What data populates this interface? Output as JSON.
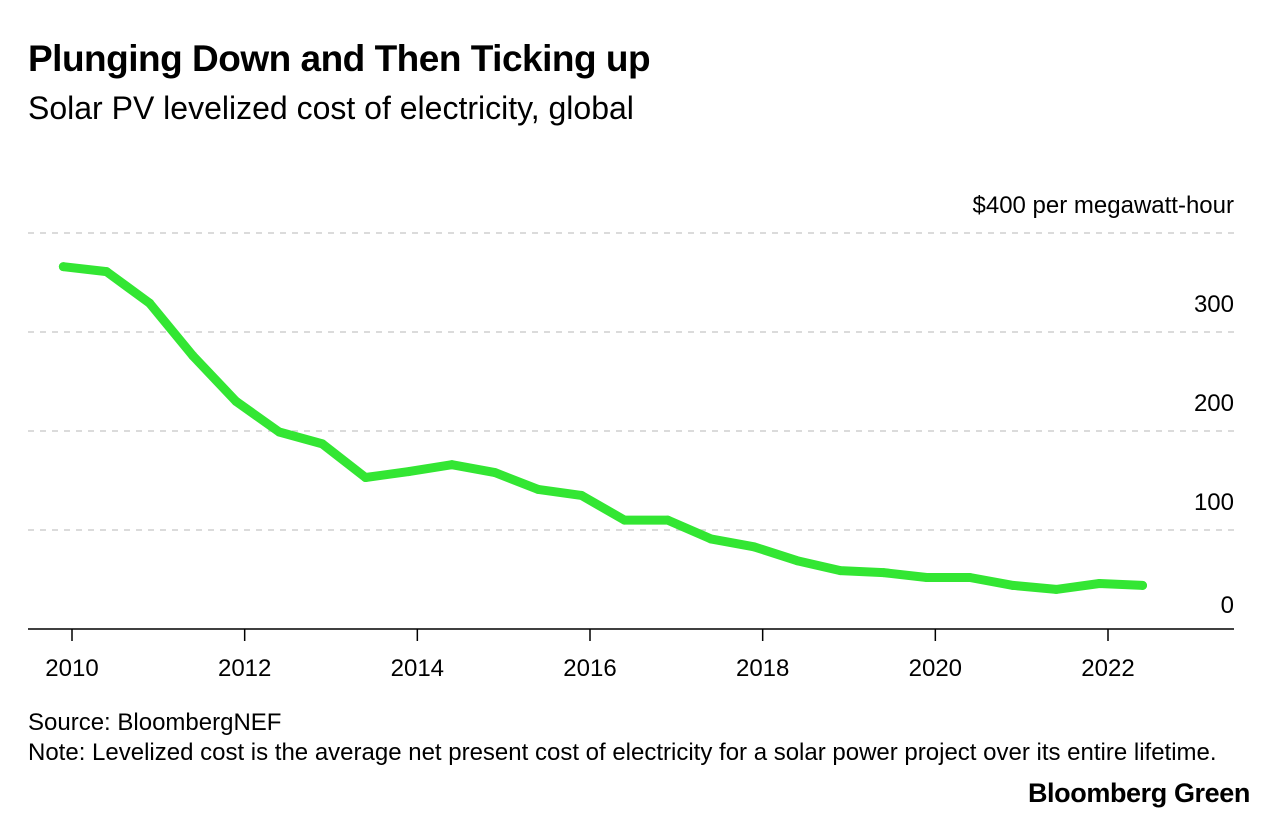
{
  "title": "Plunging Down and Then Ticking up",
  "subtitle": "Solar PV levelized cost of electricity, global",
  "source": "Source: BloombergNEF",
  "note": "Note: Levelized cost is the average net present cost of electricity for a solar power project over its entire lifetime.",
  "brand": "Bloomberg Green",
  "chart_data": {
    "type": "line",
    "title": "Plunging Down and Then Ticking up",
    "subtitle": "Solar PV levelized cost of electricity, global",
    "ylabel": "$400 per megawatt-hour",
    "xlabel": "",
    "xlim": [
      2009.5,
      2023.5
    ],
    "ylim": [
      0,
      400
    ],
    "y_ticks": [
      {
        "value": 400,
        "label": "$400 per megawatt-hour"
      },
      {
        "value": 300,
        "label": "300"
      },
      {
        "value": 200,
        "label": "200"
      },
      {
        "value": 100,
        "label": "100"
      },
      {
        "value": 0,
        "label": "0"
      }
    ],
    "x_ticks": [
      {
        "value": 2010,
        "label": "2010"
      },
      {
        "value": 2012,
        "label": "2012"
      },
      {
        "value": 2014,
        "label": "2014"
      },
      {
        "value": 2016,
        "label": "2016"
      },
      {
        "value": 2018,
        "label": "2018"
      },
      {
        "value": 2020,
        "label": "2020"
      },
      {
        "value": 2022,
        "label": "2022"
      }
    ],
    "grid": "horizontal dashed",
    "y_axis_side": "right",
    "series": [
      {
        "color": "#33e633",
        "x": [
          2009.9,
          2010.4,
          2010.9,
          2011.4,
          2011.9,
          2012.4,
          2012.9,
          2013.4,
          2013.9,
          2014.4,
          2014.9,
          2015.4,
          2015.9,
          2016.4,
          2016.9,
          2017.4,
          2017.9,
          2018.4,
          2018.9,
          2019.4,
          2019.9,
          2020.4,
          2020.9,
          2021.4,
          2021.9,
          2022.4
        ],
        "values": [
          366,
          361,
          329,
          276,
          230,
          199,
          187,
          153,
          159,
          166,
          158,
          141,
          135,
          110,
          110,
          91,
          83,
          69,
          59,
          57,
          52,
          52,
          44,
          40,
          46,
          44
        ]
      }
    ]
  }
}
